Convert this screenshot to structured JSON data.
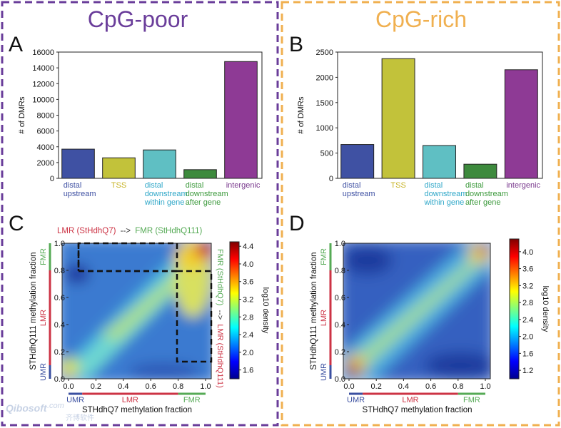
{
  "colors": {
    "poor_frame": "#6a3d9a",
    "rich_frame": "#f0b050",
    "umr": "#3a4fa0",
    "lmr": "#cc3344",
    "fmr": "#55aa55",
    "bar_upstream": "#3f51a3",
    "bar_tss": "#c2c23a",
    "bar_within": "#5fbfc3",
    "bar_after": "#3d8a3d",
    "bar_intergenic": "#8e3a95",
    "lbl_tss": "#c8b428",
    "lbl_within": "#2fa7c8",
    "lbl_after": "#3d9a3d",
    "lbl_inter": "#7a3a8e"
  },
  "left": {
    "group_title": "CpG-poor",
    "panel_bar_letter": "A",
    "panel_heat_letter": "C"
  },
  "right": {
    "group_title": "CpG-rich",
    "panel_bar_letter": "B",
    "panel_heat_letter": "D"
  },
  "annot": {
    "lmr_part": "LMR (StHdhQ7)",
    "arrow": "-->",
    "fmr_part": "FMR (StHdhQ111)",
    "side_fmr": "FMR (StHdhQ7)",
    "side_arrow": "-->",
    "side_lmr": "LMR (StHdhQ111)"
  },
  "bar_labels": [
    [
      "distal",
      "upstream"
    ],
    [
      "TSS"
    ],
    [
      "distal",
      "downstream",
      "within gene"
    ],
    [
      "distal",
      "downstream",
      "after gene"
    ],
    [
      "intergenic"
    ]
  ],
  "region_labels": {
    "umr": "UMR",
    "lmr": "LMR",
    "fmr": "FMR"
  },
  "watermark": {
    "line1": "Qibosoft",
    "line2": "齐博软件",
    "dotcom": ".com"
  },
  "chart_data": [
    {
      "type": "bar",
      "panel": "A",
      "title": "CpG-poor",
      "categories": [
        "distal upstream",
        "TSS",
        "distal downstream within gene",
        "distal downstream after gene",
        "intergenic"
      ],
      "values": [
        3700,
        2600,
        3600,
        1100,
        14800
      ],
      "ylabel": "# of DMRs",
      "ylim": [
        0,
        16000
      ],
      "yticks": [
        0,
        2000,
        4000,
        6000,
        8000,
        10000,
        12000,
        14000,
        16000
      ]
    },
    {
      "type": "bar",
      "panel": "B",
      "title": "CpG-rich",
      "categories": [
        "distal upstream",
        "TSS",
        "distal downstream within gene",
        "distal downstream after gene",
        "intergenic"
      ],
      "values": [
        670,
        2370,
        650,
        280,
        2150
      ],
      "ylabel": "# of DMRs",
      "ylim": [
        0,
        2500
      ],
      "yticks": [
        0,
        500,
        1000,
        1500,
        2000,
        2500
      ]
    },
    {
      "type": "heatmap",
      "panel": "C",
      "xlabel": "STHdhQ7 methylation fraction",
      "ylabel": "STHdhQ111 methylation fraction",
      "xticks": [
        "0.0",
        "0.2",
        "0.4",
        "0.6",
        "0.8",
        "1.0"
      ],
      "yticks": [
        "0.0",
        "0.2",
        "0.4",
        "0.6",
        "0.8",
        "1.0"
      ],
      "colorbar_label": "log10 density",
      "colorbar_ticks": [
        "1.6",
        "2.0",
        "2.4",
        "2.8",
        "3.2",
        "3.6",
        "4.0",
        "4.4"
      ],
      "colorbar_range": [
        1.4,
        4.5
      ]
    },
    {
      "type": "heatmap",
      "panel": "D",
      "xlabel": "STHdhQ7 methylation fraction",
      "ylabel": "STHdhQ111 methylation fraction",
      "xticks": [
        "0.0",
        "0.2",
        "0.4",
        "0.6",
        "0.8",
        "1.0"
      ],
      "yticks": [
        "0.0",
        "0.2",
        "0.4",
        "0.6",
        "0.8",
        "1.0"
      ],
      "colorbar_label": "log10 density",
      "colorbar_ticks": [
        "1.2",
        "1.6",
        "2.0",
        "2.4",
        "2.8",
        "3.2",
        "3.6",
        "4.0"
      ],
      "colorbar_range": [
        1.0,
        4.3
      ]
    }
  ]
}
